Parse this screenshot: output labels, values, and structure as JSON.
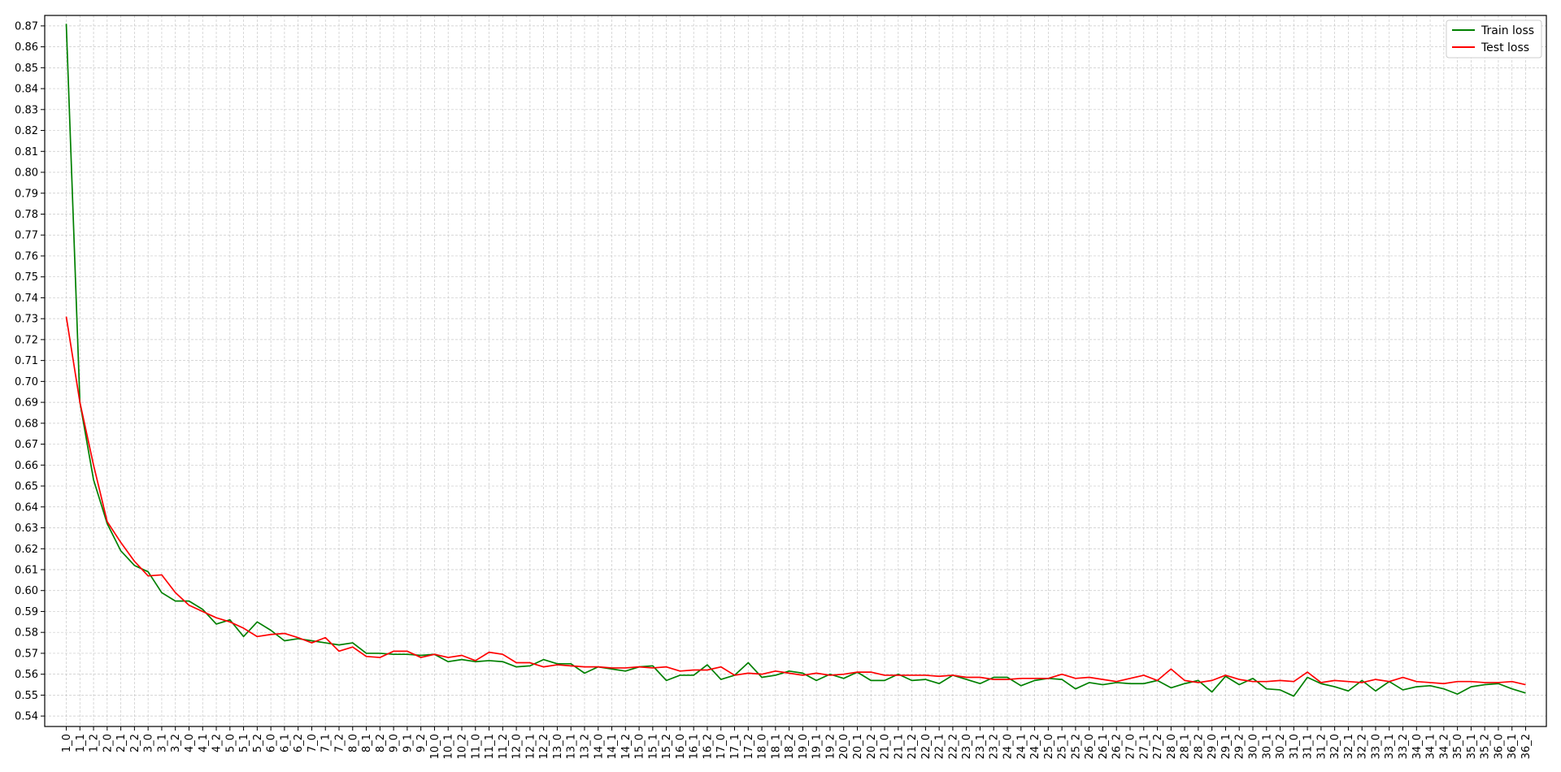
{
  "chart_data": {
    "type": "line",
    "title": "",
    "xlabel": "",
    "ylabel": "",
    "ylim": [
      0.535,
      0.875
    ],
    "y_ticks": [
      0.54,
      0.55,
      0.56,
      0.57,
      0.58,
      0.59,
      0.6,
      0.61,
      0.62,
      0.63,
      0.64,
      0.65,
      0.66,
      0.67,
      0.68,
      0.69,
      0.7,
      0.71,
      0.72,
      0.73,
      0.74,
      0.75,
      0.76,
      0.77,
      0.78,
      0.79,
      0.8,
      0.81,
      0.82,
      0.83,
      0.84,
      0.85,
      0.86,
      0.87
    ],
    "y_tick_labels": [
      "0.54",
      "0.55",
      "0.56",
      "0.57",
      "0.58",
      "0.59",
      "0.60",
      "0.61",
      "0.62",
      "0.63",
      "0.64",
      "0.65",
      "0.66",
      "0.67",
      "0.68",
      "0.69",
      "0.70",
      "0.71",
      "0.72",
      "0.73",
      "0.74",
      "0.75",
      "0.76",
      "0.77",
      "0.78",
      "0.79",
      "0.80",
      "0.81",
      "0.82",
      "0.83",
      "0.84",
      "0.85",
      "0.86",
      "0.87"
    ],
    "grid": true,
    "legend_position": "top-right",
    "categories": [
      "1_0",
      "1_1",
      "1_2",
      "2_0",
      "2_1",
      "2_2",
      "3_0",
      "3_1",
      "3_2",
      "4_0",
      "4_1",
      "4_2",
      "5_0",
      "5_1",
      "5_2",
      "6_0",
      "6_1",
      "6_2",
      "7_0",
      "7_1",
      "7_2",
      "8_0",
      "8_1",
      "8_2",
      "9_0",
      "9_1",
      "9_2",
      "10_0",
      "10_1",
      "10_2",
      "11_0",
      "11_1",
      "11_2",
      "12_0",
      "12_1",
      "12_2",
      "13_0",
      "13_1",
      "13_2",
      "14_0",
      "14_1",
      "14_2",
      "15_0",
      "15_1",
      "15_2",
      "16_0",
      "16_1",
      "16_2",
      "17_0",
      "17_1",
      "17_2",
      "18_0",
      "18_1",
      "18_2",
      "19_0",
      "19_1",
      "19_2",
      "20_0",
      "20_1",
      "20_2",
      "21_0",
      "21_1",
      "21_2",
      "22_0",
      "22_1",
      "22_2",
      "23_0",
      "23_1",
      "23_2",
      "24_0",
      "24_1",
      "24_2",
      "25_0",
      "25_1",
      "25_2",
      "26_0",
      "26_1",
      "26_2",
      "27_0",
      "27_1",
      "27_2",
      "28_0",
      "28_1",
      "28_2",
      "29_0",
      "29_1",
      "29_2",
      "30_0",
      "30_1",
      "30_2",
      "31_0",
      "31_1",
      "31_2",
      "32_0",
      "32_1",
      "32_2",
      "33_0",
      "33_1",
      "33_2",
      "34_0",
      "34_1",
      "34_2",
      "35_0",
      "35_1",
      "35_2",
      "36_0",
      "36_1",
      "36_2"
    ],
    "series": [
      {
        "name": "Train loss",
        "color": "#008000",
        "values": [
          0.871,
          0.69,
          0.653,
          0.632,
          0.619,
          0.612,
          0.609,
          0.599,
          0.595,
          0.595,
          0.591,
          0.584,
          0.586,
          0.578,
          0.585,
          0.581,
          0.576,
          0.577,
          0.576,
          0.575,
          0.574,
          0.575,
          0.57,
          0.57,
          0.5695,
          0.5695,
          0.569,
          0.5695,
          0.566,
          0.567,
          0.566,
          0.5665,
          0.566,
          0.5635,
          0.564,
          0.567,
          0.565,
          0.565,
          0.5605,
          0.5635,
          0.5625,
          0.5615,
          0.5635,
          0.564,
          0.557,
          0.5595,
          0.5595,
          0.5645,
          0.5575,
          0.5595,
          0.5655,
          0.5585,
          0.5595,
          0.5615,
          0.5605,
          0.557,
          0.56,
          0.558,
          0.561,
          0.557,
          0.557,
          0.56,
          0.557,
          0.5575,
          0.5555,
          0.5595,
          0.5575,
          0.5555,
          0.5585,
          0.5585,
          0.5545,
          0.557,
          0.558,
          0.5575,
          0.553,
          0.556,
          0.555,
          0.556,
          0.5555,
          0.5555,
          0.557,
          0.5535,
          0.5555,
          0.557,
          0.5515,
          0.559,
          0.555,
          0.558,
          0.553,
          0.5525,
          0.5495,
          0.5585,
          0.5555,
          0.554,
          0.552,
          0.557,
          0.552,
          0.5565,
          0.5525,
          0.554,
          0.5545,
          0.553,
          0.5505,
          0.554,
          0.555,
          0.5555,
          0.553,
          0.551
        ]
      },
      {
        "name": "Test loss",
        "color": "#ff0000",
        "values": [
          0.731,
          0.69,
          0.66,
          0.633,
          0.623,
          0.614,
          0.607,
          0.6075,
          0.599,
          0.593,
          0.59,
          0.587,
          0.585,
          0.582,
          0.578,
          0.579,
          0.5795,
          0.5775,
          0.575,
          0.5775,
          0.571,
          0.573,
          0.5685,
          0.568,
          0.571,
          0.571,
          0.568,
          0.5695,
          0.568,
          0.569,
          0.5665,
          0.5705,
          0.5695,
          0.5655,
          0.5655,
          0.5635,
          0.5645,
          0.564,
          0.5635,
          0.5635,
          0.563,
          0.563,
          0.5635,
          0.563,
          0.5635,
          0.5615,
          0.562,
          0.562,
          0.5635,
          0.5595,
          0.5605,
          0.56,
          0.5615,
          0.5605,
          0.5595,
          0.5605,
          0.5595,
          0.56,
          0.561,
          0.561,
          0.5595,
          0.5595,
          0.5595,
          0.5595,
          0.559,
          0.5595,
          0.5585,
          0.5585,
          0.5575,
          0.5575,
          0.558,
          0.558,
          0.558,
          0.56,
          0.558,
          0.5585,
          0.5575,
          0.5565,
          0.558,
          0.5595,
          0.557,
          0.5625,
          0.557,
          0.556,
          0.557,
          0.5595,
          0.5575,
          0.5565,
          0.5565,
          0.557,
          0.5565,
          0.561,
          0.556,
          0.557,
          0.5565,
          0.556,
          0.5575,
          0.5565,
          0.5585,
          0.5565,
          0.556,
          0.5555,
          0.5565,
          0.5565,
          0.556,
          0.556,
          0.5565,
          0.555
        ]
      }
    ]
  }
}
